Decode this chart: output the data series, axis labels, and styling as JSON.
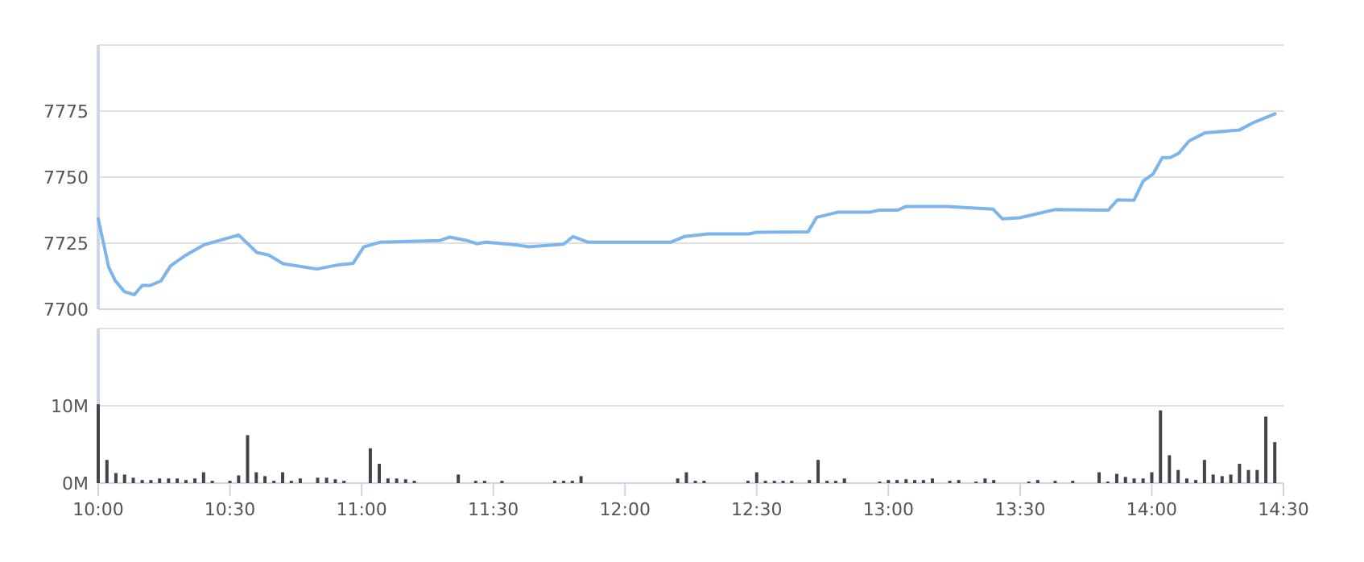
{
  "chart_data": [
    {
      "type": "line",
      "x": [
        10.0,
        10.04,
        10.065,
        10.1,
        10.137,
        10.167,
        10.198,
        10.238,
        10.275,
        10.33,
        10.402,
        10.533,
        10.602,
        10.647,
        10.702,
        10.83,
        10.912,
        10.968,
        11.008,
        11.073,
        11.298,
        11.335,
        11.4,
        11.437,
        11.472,
        11.583,
        11.635,
        11.767,
        11.803,
        11.858,
        12.175,
        12.225,
        12.317,
        12.47,
        12.5,
        12.695,
        12.728,
        12.807,
        12.928,
        12.965,
        13.035,
        13.067,
        13.223,
        13.397,
        13.433,
        13.498,
        13.632,
        13.835,
        13.87,
        13.932,
        13.968,
        14.005,
        14.04,
        14.07,
        14.102,
        14.142,
        14.203,
        14.332,
        14.387,
        14.468
      ],
      "series": [
        {
          "color": "#7cb5ec",
          "values": [
            7734.2,
            7715.8,
            7710.7,
            7706.6,
            7705.5,
            7709,
            7709,
            7710.7,
            7716.4,
            7720.3,
            7724.4,
            7728.1,
            7721.5,
            7720.5,
            7717.2,
            7715.2,
            7716.8,
            7717.4,
            7723.6,
            7725.4,
            7726,
            7727.3,
            7726,
            7724.8,
            7725.4,
            7724.4,
            7723.6,
            7724.6,
            7727.5,
            7725.4,
            7725.4,
            7727.5,
            7728.5,
            7728.5,
            7729.1,
            7729.3,
            7734.8,
            7736.7,
            7736.7,
            7737.5,
            7737.5,
            7738.9,
            7738.9,
            7737.9,
            7734.2,
            7734.6,
            7737.7,
            7737.5,
            7741.4,
            7741.2,
            7748.6,
            7751.2,
            7757.4,
            7757.4,
            7759,
            7763.7,
            7766.8,
            7767.8,
            7770.7,
            7774.0
          ]
        }
      ],
      "xlim": [
        10,
        14.5
      ],
      "ylim": [
        7700,
        7800
      ],
      "yticks": [
        7700,
        7725,
        7750,
        7775,
        {
          "value": 7800,
          "label": null
        }
      ],
      "tick_labels": "y",
      "grid": "y",
      "marker": "none",
      "line_style": "solid"
    },
    {
      "type": "bar",
      "x": [
        10.0,
        10.033,
        10.067,
        10.1,
        10.133,
        10.167,
        10.2,
        10.233,
        10.267,
        10.3,
        10.333,
        10.367,
        10.4,
        10.433,
        10.5,
        10.533,
        10.567,
        10.6,
        10.633,
        10.667,
        10.7,
        10.733,
        10.767,
        10.833,
        10.867,
        10.9,
        10.933,
        11.033,
        11.067,
        11.1,
        11.133,
        11.167,
        11.2,
        11.367,
        11.433,
        11.467,
        11.533,
        11.733,
        11.767,
        11.8,
        11.833,
        12.2,
        12.233,
        12.267,
        12.3,
        12.467,
        12.5,
        12.533,
        12.567,
        12.6,
        12.633,
        12.7,
        12.733,
        12.767,
        12.8,
        12.833,
        12.967,
        13.0,
        13.033,
        13.067,
        13.1,
        13.133,
        13.167,
        13.233,
        13.267,
        13.333,
        13.367,
        13.4,
        13.533,
        13.567,
        13.633,
        13.7,
        13.8,
        13.833,
        13.867,
        13.9,
        13.933,
        13.967,
        14.0,
        14.033,
        14.067,
        14.1,
        14.133,
        14.167,
        14.2,
        14.233,
        14.267,
        14.3,
        14.333,
        14.367,
        14.4,
        14.433,
        14.467
      ],
      "series": [
        {
          "color": "#434348",
          "values": [
            10.2,
            3.0,
            1.3,
            1.1,
            0.7,
            0.4,
            0.4,
            0.6,
            0.6,
            0.6,
            0.4,
            0.6,
            1.4,
            0.3,
            0.3,
            1.0,
            6.2,
            1.4,
            0.9,
            0.3,
            1.4,
            0.3,
            0.6,
            0.7,
            0.7,
            0.5,
            0.3,
            4.5,
            2.5,
            0.6,
            0.6,
            0.5,
            0.3,
            1.1,
            0.3,
            0.3,
            0.3,
            0.3,
            0.3,
            0.3,
            0.9,
            0.6,
            1.4,
            0.3,
            0.3,
            0.3,
            1.4,
            0.3,
            0.3,
            0.3,
            0.3,
            0.4,
            3.0,
            0.3,
            0.3,
            0.6,
            0.2,
            0.4,
            0.4,
            0.5,
            0.4,
            0.4,
            0.6,
            0.3,
            0.4,
            0.2,
            0.6,
            0.4,
            0.2,
            0.4,
            0.3,
            0.3,
            1.4,
            0.2,
            1.2,
            0.8,
            0.6,
            0.6,
            1.4,
            9.4,
            3.6,
            1.7,
            0.6,
            0.4,
            3.0,
            1.1,
            0.9,
            1.1,
            2.5,
            1.7,
            1.7,
            8.6,
            5.3
          ]
        }
      ],
      "xlim": [
        10,
        14.5
      ],
      "xticks": [
        {
          "value": 10,
          "label": "10:00"
        },
        {
          "value": 10.5,
          "label": "10:30"
        },
        {
          "value": 11,
          "label": "11:00"
        },
        {
          "value": 11.5,
          "label": "11:30"
        },
        {
          "value": 12,
          "label": "12:00"
        },
        {
          "value": 12.5,
          "label": "12:30"
        },
        {
          "value": 13,
          "label": "13:00"
        },
        {
          "value": 13.5,
          "label": "13:30"
        },
        {
          "value": 14,
          "label": "14:00"
        },
        {
          "value": 14.5,
          "label": "14:30"
        }
      ],
      "ylim": [
        0,
        20
      ],
      "yticks": [
        {
          "value": 0,
          "label": "0M"
        },
        {
          "value": 10,
          "label": "10M"
        },
        {
          "value": 20,
          "label": null
        }
      ],
      "grid": "y"
    }
  ]
}
